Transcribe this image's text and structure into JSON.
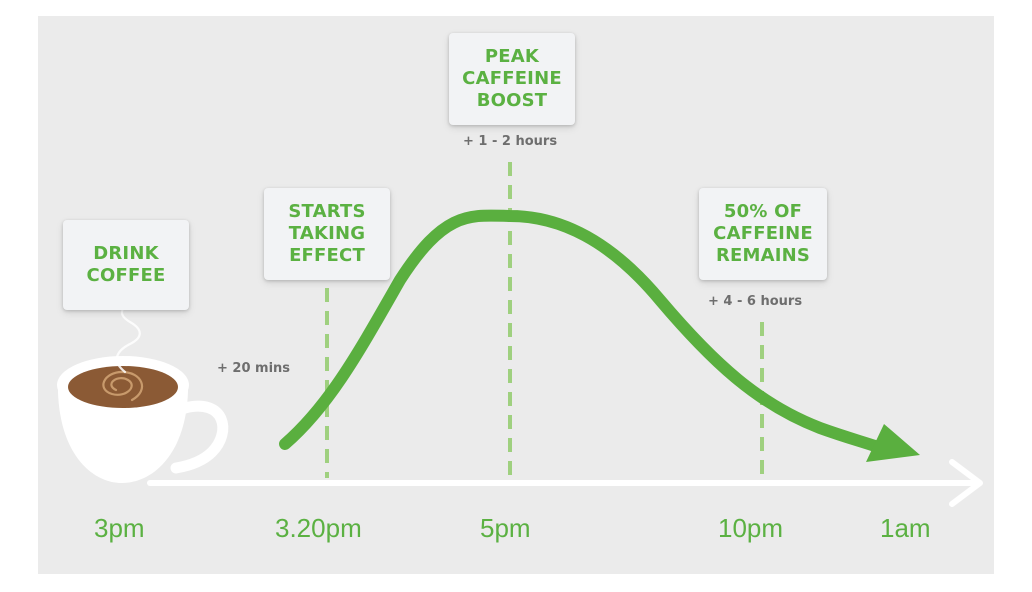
{
  "events": {
    "drink": {
      "label": "DRINK\nCOFFEE"
    },
    "start": {
      "label": "STARTS\nTAKING\nEFFECT",
      "offset": "+ 20 mins"
    },
    "peak": {
      "label": "PEAK\nCAFFEINE\nBOOST",
      "offset": "+ 1 - 2 hours"
    },
    "half": {
      "label": "50% OF\nCAFFEINE\nREMAINS",
      "offset": "+ 4 - 6 hours"
    }
  },
  "axis": {
    "ticks": [
      "3pm",
      "3.20pm",
      "5pm",
      "10pm",
      "1am"
    ]
  },
  "colors": {
    "accent": "#5bb142",
    "curve": "#5aaf3f",
    "dashed": "#9fd07f",
    "coffee": "#8b5a35",
    "background": "#ebebeb"
  },
  "icons": [
    "coffee-cup-icon",
    "steam-icon"
  ]
}
